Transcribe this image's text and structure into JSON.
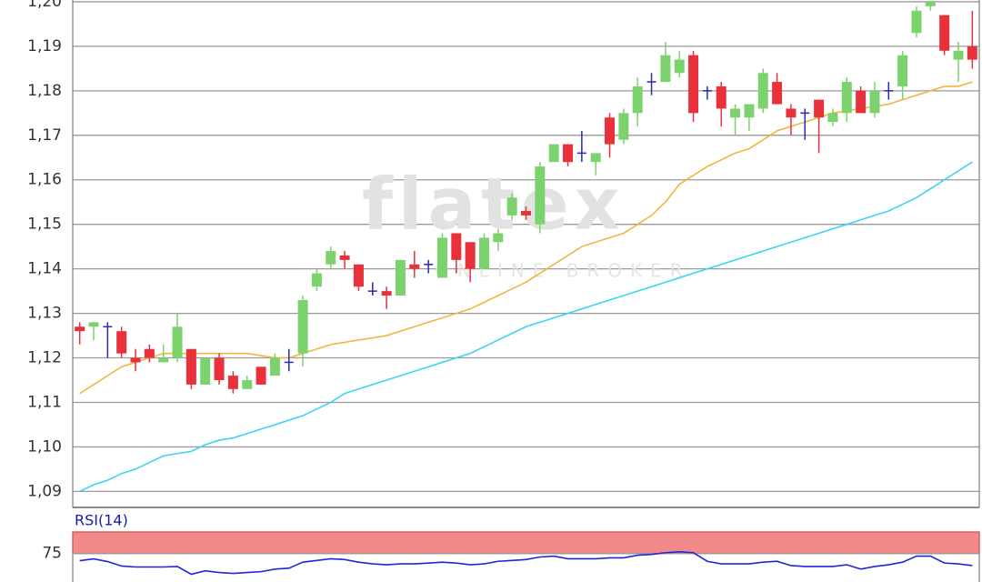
{
  "chart_data": [
    {
      "type": "candlestick",
      "annotations": [
        "flatex",
        "ONLINE BROKER"
      ],
      "up_color": "#7cd36e",
      "down_color": "#e8313b",
      "doji_color": "#2a2ab8",
      "open": [
        1.127,
        1.127,
        1.127,
        1.126,
        1.12,
        1.122,
        1.119,
        1.12,
        1.122,
        1.114,
        1.12,
        1.116,
        1.113,
        1.118,
        1.116,
        1.119,
        1.121,
        1.136,
        1.141,
        1.143,
        1.141,
        1.135,
        1.135,
        1.134,
        1.141,
        1.141,
        1.138,
        1.148,
        1.146,
        1.14,
        1.146,
        1.152,
        1.153,
        1.15,
        1.164,
        1.168,
        1.166,
        1.164,
        1.174,
        1.169,
        1.175,
        1.182,
        1.182,
        1.184,
        1.188,
        1.18,
        1.181,
        1.174,
        1.174,
        1.176,
        1.182,
        1.176,
        1.175,
        1.178,
        1.173,
        1.175,
        1.18,
        1.175,
        1.18,
        1.181,
        1.193,
        1.199,
        1.197,
        1.187,
        1.19
      ],
      "high": [
        1.128,
        1.128,
        1.128,
        1.127,
        1.122,
        1.123,
        1.123,
        1.13,
        1.122,
        1.12,
        1.121,
        1.117,
        1.116,
        1.118,
        1.121,
        1.122,
        1.134,
        1.14,
        1.145,
        1.144,
        1.141,
        1.137,
        1.136,
        1.142,
        1.144,
        1.142,
        1.148,
        1.148,
        1.146,
        1.148,
        1.149,
        1.157,
        1.154,
        1.164,
        1.168,
        1.168,
        1.171,
        1.166,
        1.175,
        1.176,
        1.183,
        1.184,
        1.191,
        1.189,
        1.189,
        1.181,
        1.182,
        1.177,
        1.177,
        1.185,
        1.184,
        1.177,
        1.176,
        1.178,
        1.176,
        1.183,
        1.181,
        1.182,
        1.182,
        1.189,
        1.199,
        1.2,
        1.197,
        1.191,
        1.198
      ],
      "low": [
        1.123,
        1.124,
        1.12,
        1.12,
        1.117,
        1.119,
        1.119,
        1.119,
        1.113,
        1.114,
        1.114,
        1.112,
        1.113,
        1.114,
        1.116,
        1.117,
        1.118,
        1.135,
        1.14,
        1.14,
        1.135,
        1.134,
        1.131,
        1.134,
        1.138,
        1.139,
        1.138,
        1.139,
        1.137,
        1.14,
        1.144,
        1.151,
        1.151,
        1.148,
        1.164,
        1.163,
        1.164,
        1.161,
        1.165,
        1.168,
        1.172,
        1.179,
        1.182,
        1.183,
        1.173,
        1.178,
        1.172,
        1.17,
        1.171,
        1.175,
        1.177,
        1.17,
        1.169,
        1.166,
        1.172,
        1.173,
        1.175,
        1.174,
        1.178,
        1.178,
        1.192,
        1.198,
        1.188,
        1.182,
        1.185
      ],
      "close": [
        1.126,
        1.128,
        1.127,
        1.121,
        1.119,
        1.12,
        1.12,
        1.127,
        1.114,
        1.12,
        1.115,
        1.113,
        1.115,
        1.114,
        1.12,
        1.119,
        1.133,
        1.139,
        1.144,
        1.142,
        1.136,
        1.135,
        1.134,
        1.142,
        1.14,
        1.141,
        1.147,
        1.142,
        1.14,
        1.147,
        1.148,
        1.156,
        1.152,
        1.163,
        1.168,
        1.164,
        1.166,
        1.166,
        1.168,
        1.175,
        1.181,
        1.182,
        1.188,
        1.187,
        1.175,
        1.18,
        1.176,
        1.176,
        1.177,
        1.184,
        1.177,
        1.174,
        1.175,
        1.174,
        1.175,
        1.182,
        1.175,
        1.18,
        1.18,
        1.188,
        1.198,
        1.2,
        1.189,
        1.189,
        1.187
      ],
      "series": [
        {
          "color": "#f2b640",
          "values": [
            1.112,
            1.114,
            1.116,
            1.118,
            1.119,
            1.12,
            1.121,
            1.121,
            1.121,
            1.121,
            1.121,
            1.121,
            1.121,
            1.1205,
            1.12,
            1.12,
            1.121,
            1.122,
            1.123,
            1.1235,
            1.124,
            1.1245,
            1.125,
            1.126,
            1.127,
            1.128,
            1.129,
            1.13,
            1.131,
            1.1325,
            1.134,
            1.1355,
            1.137,
            1.139,
            1.141,
            1.143,
            1.145,
            1.146,
            1.147,
            1.148,
            1.15,
            1.152,
            1.155,
            1.159,
            1.161,
            1.163,
            1.1645,
            1.166,
            1.167,
            1.169,
            1.171,
            1.172,
            1.173,
            1.174,
            1.175,
            1.1755,
            1.176,
            1.1765,
            1.177,
            1.178,
            1.179,
            1.18,
            1.181,
            1.181,
            1.182
          ]
        },
        {
          "color": "#3fd3f2",
          "values": [
            1.09,
            1.0915,
            1.0925,
            1.094,
            1.095,
            1.0965,
            1.098,
            1.0985,
            1.099,
            1.1005,
            1.1015,
            1.102,
            1.103,
            1.104,
            1.105,
            1.106,
            1.107,
            1.1085,
            1.11,
            1.112,
            1.113,
            1.114,
            1.115,
            1.116,
            1.117,
            1.118,
            1.119,
            1.12,
            1.121,
            1.1225,
            1.124,
            1.1255,
            1.127,
            1.128,
            1.129,
            1.13,
            1.131,
            1.132,
            1.133,
            1.134,
            1.135,
            1.136,
            1.137,
            1.138,
            1.139,
            1.14,
            1.141,
            1.142,
            1.143,
            1.144,
            1.145,
            1.146,
            1.147,
            1.148,
            1.149,
            1.15,
            1.151,
            1.152,
            1.153,
            1.1545,
            1.156,
            1.158,
            1.16,
            1.162,
            1.164
          ]
        }
      ],
      "ylim": [
        1.0864,
        1.2004
      ],
      "yticks": [
        {
          "value": 1.09,
          "label": "1,09"
        },
        {
          "value": 1.1,
          "label": "1,10"
        },
        {
          "value": 1.11,
          "label": "1,11"
        },
        {
          "value": 1.12,
          "label": "1,12"
        },
        {
          "value": 1.13,
          "label": "1,13"
        },
        {
          "value": 1.14,
          "label": "1,14"
        },
        {
          "value": 1.15,
          "label": "1,15"
        },
        {
          "value": 1.16,
          "label": "1,16"
        },
        {
          "value": 1.17,
          "label": "1,17"
        },
        {
          "value": 1.18,
          "label": "1,18"
        },
        {
          "value": 1.19,
          "label": "1,19"
        },
        {
          "value": 1.2,
          "label": "1,20"
        }
      ],
      "grid": true
    },
    {
      "type": "line",
      "title": "RSI(14)",
      "band": {
        "range": [
          75,
          100
        ],
        "color": "#f28a8a"
      },
      "series": [
        {
          "color": "#2424d8",
          "values": [
            66.7,
            68.8,
            65.7,
            60.5,
            59.4,
            59.4,
            59.4,
            60,
            51,
            55,
            53,
            52,
            53,
            54,
            57,
            58,
            65,
            67,
            69,
            68,
            65,
            63,
            62,
            63,
            63,
            64,
            65,
            64,
            62,
            63,
            66,
            67,
            68,
            71,
            72,
            69,
            69,
            69,
            70,
            70,
            73,
            74,
            76,
            77,
            76,
            66,
            63,
            63,
            63,
            65,
            66,
            61,
            60,
            60,
            60,
            62,
            57,
            60,
            62,
            65,
            72,
            72,
            64,
            63,
            61
          ]
        }
      ],
      "ylim": [
        42,
        100
      ],
      "yticks": [
        75
      ],
      "grid": true
    }
  ]
}
